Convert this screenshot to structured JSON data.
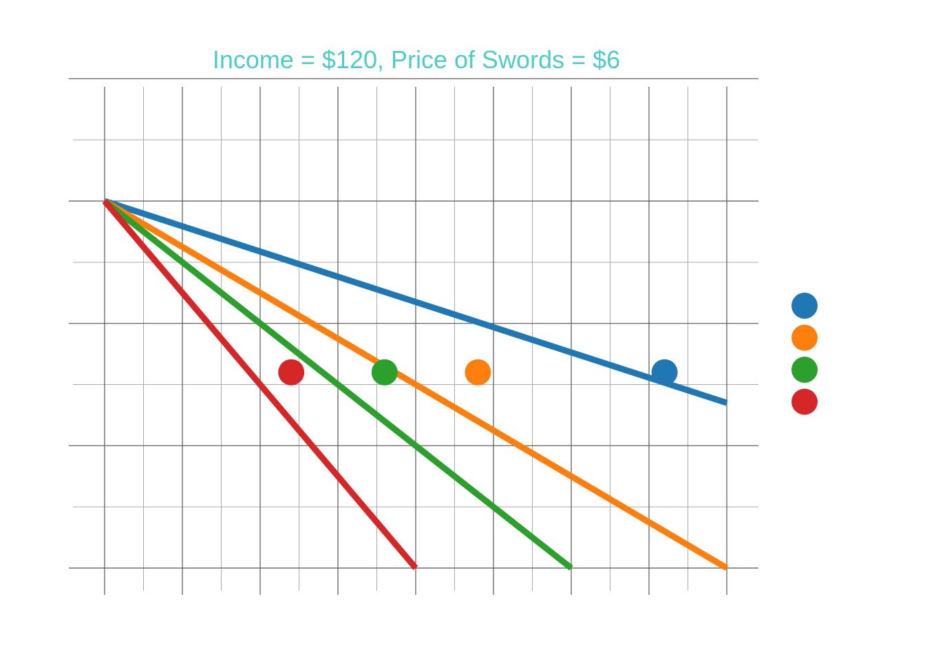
{
  "chart_data": {
    "type": "line",
    "title": "Income = $120, Price of Swords = $6",
    "xlabel": "",
    "ylabel": "",
    "xlim": [
      0,
      8
    ],
    "ylim": [
      0,
      4
    ],
    "x_major_ticks": [
      0,
      1,
      2,
      3,
      4,
      5,
      6,
      7,
      8
    ],
    "x_minor_ticks": [
      0.5,
      1.5,
      2.5,
      3.5,
      4.5,
      5.5,
      6.5,
      7.5
    ],
    "y_major_ticks": [
      0,
      1,
      2,
      3,
      4
    ],
    "y_minor_ticks": [
      0.5,
      1.5,
      2.5,
      3.5
    ],
    "grid": true,
    "legend_position": "right",
    "series": [
      {
        "color": "#1f77b4",
        "line": [
          [
            0,
            3
          ],
          [
            8,
            1.35
          ]
        ],
        "point": [
          7.2,
          1.6
        ]
      },
      {
        "color": "#ff7f0e",
        "line": [
          [
            0,
            3
          ],
          [
            8,
            0
          ]
        ],
        "point": [
          4.8,
          1.6
        ]
      },
      {
        "color": "#2ca02c",
        "line": [
          [
            0,
            3
          ],
          [
            6,
            0
          ]
        ],
        "point": [
          3.6,
          1.6
        ]
      },
      {
        "color": "#d62728",
        "line": [
          [
            0,
            3
          ],
          [
            4,
            0
          ]
        ],
        "point": [
          2.4,
          1.6
        ]
      }
    ]
  }
}
